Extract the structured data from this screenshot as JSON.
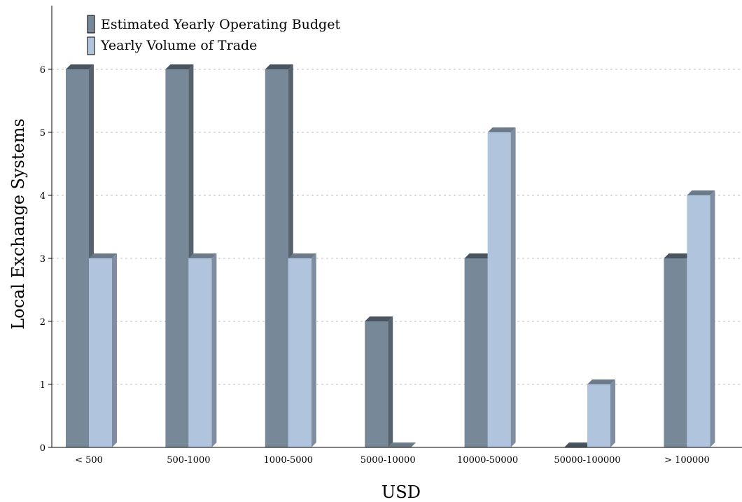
{
  "chart_data": {
    "type": "bar",
    "categories": [
      "< 500",
      "500-1000",
      "1000-5000",
      "5000-10000",
      "10000-50000",
      "50000-100000",
      "> 100000"
    ],
    "series": [
      {
        "name": "Estimated Yearly Operating Budget",
        "values": [
          6,
          6,
          6,
          2,
          3,
          0,
          3
        ],
        "color": "#778899"
      },
      {
        "name": "Yearly Volume of Trade",
        "values": [
          3,
          3,
          3,
          0,
          5,
          1,
          4
        ],
        "color": "#b0c4de"
      }
    ],
    "xlabel": "USD",
    "ylabel": "Local Exchange Systems",
    "ylim": [
      0,
      6
    ],
    "yticks": [
      "0",
      "1",
      "2",
      "3",
      "4",
      "5",
      "6"
    ],
    "grid": true,
    "legend_position": "top-left"
  }
}
